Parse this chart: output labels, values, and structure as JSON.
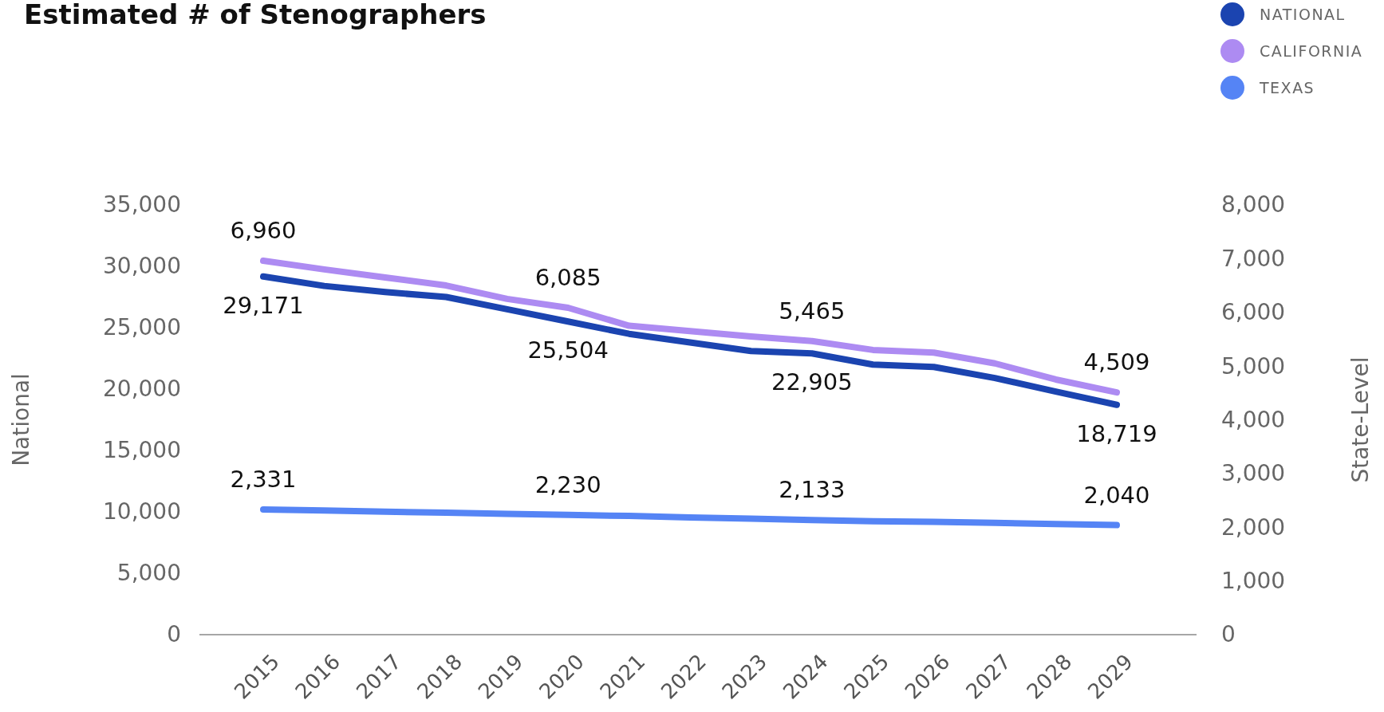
{
  "chart_data": {
    "type": "line",
    "title": "Estimated # of Stenographers",
    "ylabel": "National",
    "y2label": "State-Level",
    "categories": [
      "2015",
      "2016",
      "2017",
      "2018",
      "2019",
      "2020",
      "2021",
      "2022",
      "2023",
      "2024",
      "2025",
      "2026",
      "2027",
      "2028",
      "2029"
    ],
    "series": [
      {
        "name": "NATIONAL",
        "color": "#1b44b0",
        "values": [
          29171,
          28400,
          27900,
          27500,
          26500,
          25504,
          24500,
          23800,
          23100,
          22905,
          22000,
          21800,
          20900,
          19800,
          18719
        ],
        "value_labels": [
          "29,171",
          null,
          null,
          null,
          null,
          "25,504",
          null,
          null,
          null,
          "22,905",
          null,
          null,
          null,
          null,
          "18,719"
        ]
      },
      {
        "name": "CALIFORNIA",
        "color": "#ad8bf2",
        "axis": "y2",
        "values": [
          6960,
          6800,
          6650,
          6500,
          6250,
          6085,
          5750,
          5650,
          5550,
          5465,
          5300,
          5250,
          5050,
          4750,
          4509
        ],
        "value_labels": [
          "6,960",
          null,
          null,
          null,
          null,
          "6,085",
          null,
          null,
          null,
          "5,465",
          null,
          null,
          null,
          null,
          "4,509"
        ]
      },
      {
        "name": "TEXAS",
        "color": "#5584f5",
        "axis": "y2",
        "values": [
          2331,
          2310,
          2290,
          2270,
          2250,
          2230,
          2210,
          2180,
          2160,
          2133,
          2110,
          2100,
          2080,
          2060,
          2040
        ],
        "value_labels": [
          "2,331",
          null,
          null,
          null,
          null,
          "2,230",
          null,
          null,
          null,
          "2,133",
          null,
          null,
          null,
          null,
          "2,040"
        ]
      }
    ],
    "ylim": [
      0,
      35000
    ],
    "yticks": [
      {
        "value": 0,
        "label": "0"
      },
      {
        "value": 5000,
        "label": "5,000"
      },
      {
        "value": 10000,
        "label": "10,000"
      },
      {
        "value": 15000,
        "label": "15,000"
      },
      {
        "value": 20000,
        "label": "20,000"
      },
      {
        "value": 25000,
        "label": "25,000"
      },
      {
        "value": 30000,
        "label": "30,000"
      },
      {
        "value": 35000,
        "label": "35,000"
      }
    ],
    "y2lim": [
      0,
      8000
    ],
    "y2ticks": [
      {
        "value": 0,
        "label": "0"
      },
      {
        "value": 1000,
        "label": "1,000"
      },
      {
        "value": 2000,
        "label": "2,000"
      },
      {
        "value": 3000,
        "label": "3,000"
      },
      {
        "value": 4000,
        "label": "4,000"
      },
      {
        "value": 5000,
        "label": "5,000"
      },
      {
        "value": 6000,
        "label": "6,000"
      },
      {
        "value": 7000,
        "label": "7,000"
      },
      {
        "value": 8000,
        "label": "8,000"
      }
    ],
    "grid": false,
    "legend": "top right",
    "marker": "none",
    "line_style": "solid"
  }
}
